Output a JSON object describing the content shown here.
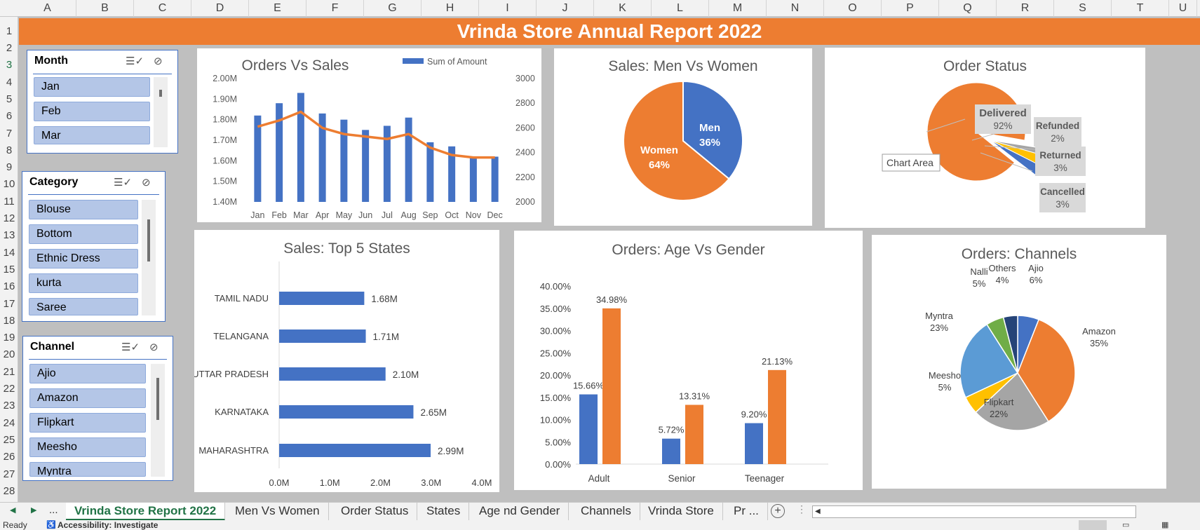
{
  "columns": [
    "A",
    "B",
    "C",
    "D",
    "E",
    "F",
    "G",
    "H",
    "I",
    "J",
    "K",
    "L",
    "M",
    "N",
    "O",
    "P",
    "Q",
    "R",
    "S",
    "T",
    "U"
  ],
  "rows": [
    "1",
    "2",
    "3",
    "4",
    "5",
    "6",
    "7",
    "8",
    "9",
    "10",
    "11",
    "12",
    "13",
    "14",
    "15",
    "16",
    "17",
    "18",
    "19",
    "20",
    "21",
    "22",
    "23",
    "24",
    "25",
    "26",
    "27",
    "28"
  ],
  "selected_row": "3",
  "report_title": "Vrinda Store Annual Report 2022",
  "colors": {
    "orange": "#ed7d31",
    "blue": "#4472c4",
    "excel_green": "#217346"
  },
  "slicers": {
    "month": {
      "title": "Month",
      "items": [
        "Jan",
        "Feb",
        "Mar"
      ]
    },
    "category": {
      "title": "Category",
      "items": [
        "Blouse",
        "Bottom",
        "Ethnic Dress",
        "kurta",
        "Saree"
      ]
    },
    "channel": {
      "title": "Channel",
      "items": [
        "Ajio",
        "Amazon",
        "Flipkart",
        "Meesho",
        "Myntra"
      ]
    }
  },
  "chart_data": [
    {
      "id": "orders_vs_sales",
      "type": "bar",
      "title": "Orders Vs Sales",
      "categories": [
        "Jan",
        "Feb",
        "Mar",
        "Apr",
        "May",
        "Jun",
        "Jul",
        "Aug",
        "Sep",
        "Oct",
        "Nov",
        "Dec"
      ],
      "series": [
        {
          "name": "Sum of Amount",
          "type": "bar",
          "values": [
            1.82,
            1.88,
            1.93,
            1.83,
            1.8,
            1.75,
            1.77,
            1.81,
            1.69,
            1.67,
            1.62,
            1.62
          ]
        },
        {
          "type": "line",
          "axis": "secondary",
          "values": [
            2610,
            2660,
            2730,
            2600,
            2550,
            2530,
            2510,
            2550,
            2440,
            2380,
            2360,
            2360
          ]
        }
      ],
      "y_ticks": [
        "1.40M",
        "1.50M",
        "1.60M",
        "1.70M",
        "1.80M",
        "1.90M",
        "2.00M"
      ],
      "ylim": [
        1.4,
        2.0
      ],
      "y2_ticks": [
        "2000",
        "2200",
        "2400",
        "2600",
        "2800",
        "3000"
      ],
      "y2lim": [
        2000,
        3000
      ],
      "legend": "top-right"
    },
    {
      "id": "men_vs_women",
      "type": "pie",
      "title": "Sales: Men Vs Women",
      "categories": [
        "Men",
        "Women"
      ],
      "values": [
        36,
        64
      ],
      "labels": [
        "36%",
        "64%"
      ]
    },
    {
      "id": "order_status",
      "type": "pie",
      "title": "Order Status",
      "categories": [
        "Delivered",
        "Refunded",
        "Returned",
        "Cancelled"
      ],
      "values": [
        92,
        2,
        3,
        3
      ],
      "labels": [
        "92%",
        "2%",
        "3%",
        "3%"
      ],
      "tooltip": "Chart Area"
    },
    {
      "id": "top5_states",
      "type": "bar",
      "orientation": "horizontal",
      "title": "Sales: Top 5 States",
      "categories": [
        "TAMIL NADU",
        "TELANGANA",
        "UTTAR PRADESH",
        "KARNATAKA",
        "MAHARASHTRA"
      ],
      "values": [
        1.68,
        1.71,
        2.1,
        2.65,
        2.99
      ],
      "data_labels": [
        "1.68M",
        "1.71M",
        "2.10M",
        "2.65M",
        "2.99M"
      ],
      "x_ticks": [
        "0.0M",
        "1.0M",
        "2.0M",
        "3.0M",
        "4.0M"
      ],
      "xlim": [
        0,
        4
      ]
    },
    {
      "id": "age_vs_gender",
      "type": "bar",
      "title": "Orders: Age Vs Gender",
      "categories": [
        "Adult",
        "Senior",
        "Teenager"
      ],
      "series": [
        {
          "values": [
            15.66,
            5.72,
            9.2
          ],
          "labels": [
            "15.66%",
            "5.72%",
            "9.20%"
          ]
        },
        {
          "values": [
            34.98,
            13.31,
            21.13
          ],
          "labels": [
            "34.98%",
            "13.31%",
            "21.13%"
          ]
        }
      ],
      "y_ticks": [
        "0.00%",
        "5.00%",
        "10.00%",
        "15.00%",
        "20.00%",
        "25.00%",
        "30.00%",
        "35.00%",
        "40.00%"
      ],
      "ylim": [
        0,
        40
      ]
    },
    {
      "id": "channels",
      "type": "pie",
      "title": "Orders: Channels",
      "categories": [
        "Ajio",
        "Amazon",
        "Flipkart",
        "Meesho",
        "Myntra",
        "Nalli",
        "Others"
      ],
      "values": [
        6,
        35,
        22,
        5,
        23,
        5,
        4
      ],
      "labels": [
        "6%",
        "35%",
        "22%",
        "5%",
        "23%",
        "5%",
        "4%"
      ]
    }
  ],
  "tabs": [
    "Vrinda Store Report 2022",
    "Men Vs Women",
    "Order Status",
    "States",
    "Age nd Gender",
    "Channels",
    "Vrinda Store",
    "Pr ..."
  ],
  "tab_nav": {
    "prev": "◀",
    "next": "▶",
    "more": "...",
    "add": "+"
  },
  "status": {
    "ready": "Ready",
    "accessibility": "Accessibility: Investigate"
  }
}
